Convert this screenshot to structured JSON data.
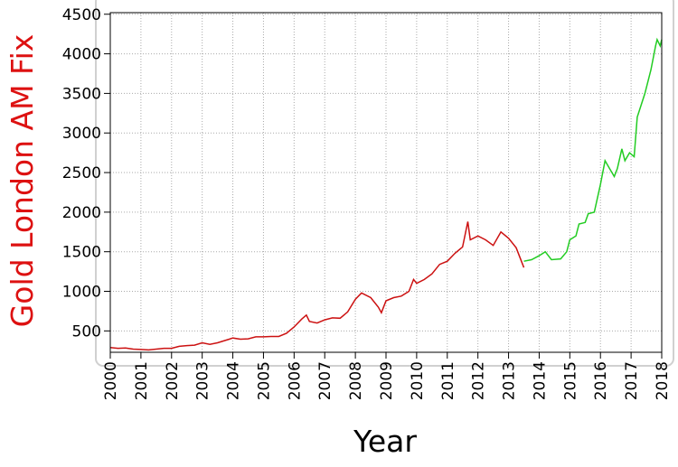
{
  "chart_data": {
    "type": "line",
    "y_label": "Gold London AM Fix",
    "x_label": "Year",
    "xlim": [
      2000,
      2018
    ],
    "ylim": [
      230,
      4520
    ],
    "xticks": [
      2000,
      2001,
      2002,
      2003,
      2004,
      2005,
      2006,
      2007,
      2008,
      2009,
      2010,
      2011,
      2012,
      2013,
      2014,
      2015,
      2016,
      2017,
      2018
    ],
    "yticks": [
      500,
      1000,
      1500,
      2000,
      2500,
      3000,
      3500,
      4000,
      4500
    ],
    "grid": true,
    "series": [
      {
        "color": "#cc1111",
        "x": [
          2000,
          2000.25,
          2000.5,
          2000.75,
          2001,
          2001.25,
          2001.5,
          2001.75,
          2002,
          2002.25,
          2002.5,
          2002.75,
          2003,
          2003.25,
          2003.5,
          2003.75,
          2004,
          2004.25,
          2004.5,
          2004.75,
          2005,
          2005.25,
          2005.5,
          2005.75,
          2006,
          2006.25,
          2006.4,
          2006.5,
          2006.75,
          2007,
          2007.25,
          2007.5,
          2007.75,
          2008,
          2008.2,
          2008.5,
          2008.75,
          2008.85,
          2009,
          2009.25,
          2009.5,
          2009.75,
          2009.9,
          2010,
          2010.25,
          2010.5,
          2010.75,
          2011,
          2011.25,
          2011.5,
          2011.67,
          2011.75,
          2012,
          2012.25,
          2012.5,
          2012.75,
          2013,
          2013.25,
          2013.5
        ],
        "values": [
          290,
          280,
          285,
          270,
          265,
          260,
          270,
          280,
          280,
          305,
          315,
          320,
          350,
          330,
          350,
          380,
          410,
          395,
          400,
          425,
          425,
          430,
          430,
          470,
          550,
          650,
          700,
          620,
          600,
          640,
          665,
          660,
          740,
          900,
          980,
          920,
          800,
          730,
          880,
          920,
          940,
          1000,
          1150,
          1100,
          1150,
          1220,
          1340,
          1380,
          1480,
          1560,
          1880,
          1650,
          1700,
          1650,
          1580,
          1750,
          1670,
          1550,
          1300
        ]
      },
      {
        "color": "#22cc22",
        "x": [
          2013.5,
          2013.75,
          2014,
          2014.2,
          2014.4,
          2014.7,
          2014.9,
          2015,
          2015.2,
          2015.3,
          2015.5,
          2015.6,
          2015.8,
          2016,
          2016.15,
          2016.3,
          2016.45,
          2016.55,
          2016.7,
          2016.8,
          2016.95,
          2017.1,
          2017.2,
          2017.45,
          2017.65,
          2017.8,
          2017.85,
          2017.95,
          2018
        ],
        "values": [
          1380,
          1400,
          1450,
          1500,
          1400,
          1410,
          1500,
          1650,
          1700,
          1850,
          1870,
          1980,
          2000,
          2350,
          2650,
          2550,
          2450,
          2550,
          2800,
          2650,
          2750,
          2700,
          3200,
          3500,
          3800,
          4100,
          4180,
          4100,
          4180
        ]
      }
    ]
  }
}
